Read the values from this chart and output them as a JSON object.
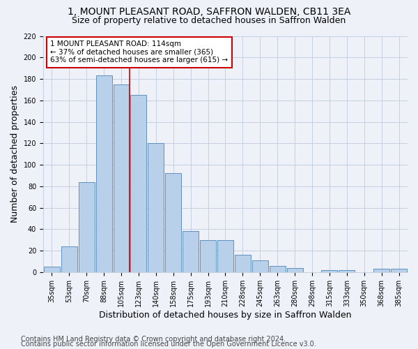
{
  "title1": "1, MOUNT PLEASANT ROAD, SAFFRON WALDEN, CB11 3EA",
  "title2": "Size of property relative to detached houses in Saffron Walden",
  "xlabel": "Distribution of detached houses by size in Saffron Walden",
  "ylabel": "Number of detached properties",
  "categories": [
    "35sqm",
    "53sqm",
    "70sqm",
    "88sqm",
    "105sqm",
    "123sqm",
    "140sqm",
    "158sqm",
    "175sqm",
    "193sqm",
    "210sqm",
    "228sqm",
    "245sqm",
    "263sqm",
    "280sqm",
    "298sqm",
    "315sqm",
    "333sqm",
    "350sqm",
    "368sqm",
    "385sqm"
  ],
  "values": [
    5,
    24,
    84,
    183,
    175,
    165,
    120,
    92,
    38,
    30,
    30,
    16,
    11,
    6,
    4,
    0,
    2,
    2,
    0,
    3,
    3
  ],
  "bar_color": "#b8d0ea",
  "bar_edge_color": "#6090c0",
  "highlight_bar_index": 4,
  "highlight_line_color": "#cc0000",
  "annotation_text": "1 MOUNT PLEASANT ROAD: 114sqm\n← 37% of detached houses are smaller (365)\n63% of semi-detached houses are larger (615) →",
  "annotation_box_color": "white",
  "annotation_box_edge_color": "#cc0000",
  "ylim": [
    0,
    220
  ],
  "yticks": [
    0,
    20,
    40,
    60,
    80,
    100,
    120,
    140,
    160,
    180,
    200,
    220
  ],
  "footer1": "Contains HM Land Registry data © Crown copyright and database right 2024.",
  "footer2": "Contains public sector information licensed under the Open Government Licence v3.0.",
  "bg_color": "#eef2f8",
  "grid_color": "#c5cfe0",
  "title_fontsize": 10,
  "subtitle_fontsize": 9,
  "axis_label_fontsize": 9,
  "tick_fontsize": 7,
  "annotation_fontsize": 7.5,
  "footer_fontsize": 7
}
